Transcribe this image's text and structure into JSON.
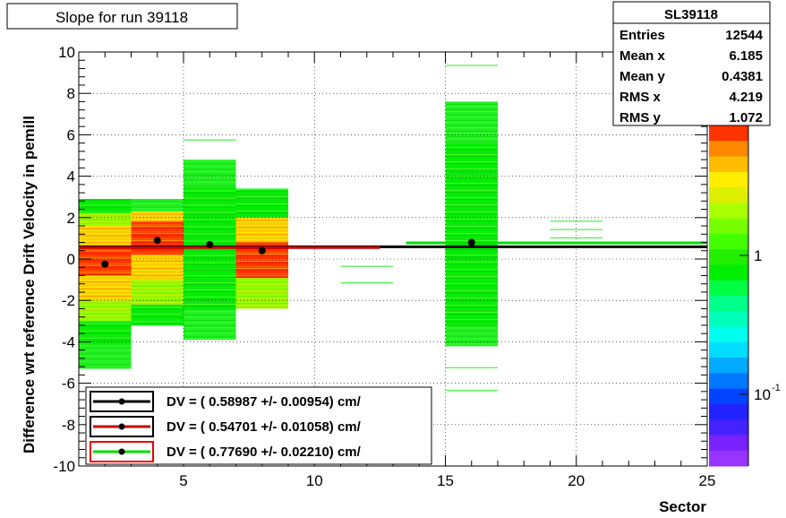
{
  "chart_data": {
    "type": "heatmap",
    "title": "Slope for run 39118",
    "xlabel": "Sector",
    "ylabel": "Difference wrt reference Drift Velocity in pemill",
    "xlim": [
      1,
      25
    ],
    "ylim": [
      -10,
      10
    ],
    "x_ticks": [
      "5",
      "10",
      "15",
      "20",
      "25"
    ],
    "y_ticks": [
      "10",
      "8",
      "6",
      "4",
      "2",
      "0",
      "-2",
      "-4",
      "-6",
      "-8",
      "-10"
    ],
    "z_scale": "log",
    "z_ticks": [
      "1",
      "10"
    ],
    "z_tick_exponents": [
      "",
      "-1"
    ],
    "grid": true,
    "stats": {
      "name": "SL39118",
      "rows": [
        {
          "label": "Entries",
          "value": "12544"
        },
        {
          "label": "Mean x",
          "value": "6.185"
        },
        {
          "label": "Mean y",
          "value": "0.4381"
        },
        {
          "label": "RMS x",
          "value": "4.219"
        },
        {
          "label": "RMS y",
          "value": "1.072"
        }
      ]
    },
    "legend": [
      {
        "text": "DV = (   0.58987 +/-    0.00954) cm/",
        "line_color": "#000000",
        "box_color": "#000000"
      },
      {
        "text": "DV = (   0.54701 +/-    0.01058) cm/",
        "line_color": "#cc0000",
        "box_color": "#000000"
      },
      {
        "text": "DV = (   0.77690 +/-    0.02210) cm/",
        "line_color": "#00dd00",
        "box_color": "#ee0000"
      }
    ],
    "fit_lines": [
      {
        "color": "#000000",
        "x": [
          1,
          25
        ],
        "y": [
          0.59,
          0.59
        ]
      },
      {
        "color": "#cc0000",
        "x": [
          1,
          12.5
        ],
        "y": [
          0.55,
          0.55
        ]
      },
      {
        "color": "#00dd00",
        "x": [
          13.5,
          25
        ],
        "y": [
          0.78,
          0.78
        ]
      }
    ],
    "profile_points": [
      {
        "x": 2,
        "y": -0.25
      },
      {
        "x": 4,
        "y": 0.9
      },
      {
        "x": 6,
        "y": 0.7
      },
      {
        "x": 8,
        "y": 0.4
      },
      {
        "x": 16,
        "y": 0.8
      }
    ],
    "bins": [
      {
        "x0": 1,
        "x1": 3,
        "segments": [
          {
            "y0": -5.3,
            "y1": -4.2,
            "level": "low"
          },
          {
            "y0": -4.2,
            "y1": -3.0,
            "level": "low2"
          },
          {
            "y0": -3.0,
            "y1": -2.0,
            "level": "mid"
          },
          {
            "y0": -2.0,
            "y1": -0.8,
            "level": "midhigh"
          },
          {
            "y0": -0.8,
            "y1": 0.6,
            "level": "high"
          },
          {
            "y0": 0.6,
            "y1": 1.6,
            "level": "midhigh"
          },
          {
            "y0": 1.6,
            "y1": 2.2,
            "level": "mid"
          },
          {
            "y0": 2.2,
            "y1": 2.9,
            "level": "low2"
          }
        ]
      },
      {
        "x0": 3,
        "x1": 5,
        "segments": [
          {
            "y0": -3.2,
            "y1": -2.2,
            "level": "low2"
          },
          {
            "y0": -2.2,
            "y1": -1.0,
            "level": "mid"
          },
          {
            "y0": -1.0,
            "y1": 0.2,
            "level": "midhigh"
          },
          {
            "y0": 0.2,
            "y1": 1.8,
            "level": "high"
          },
          {
            "y0": 1.8,
            "y1": 2.3,
            "level": "midhigh"
          },
          {
            "y0": 2.3,
            "y1": 2.9,
            "level": "low"
          }
        ]
      },
      {
        "x0": 5,
        "x1": 7,
        "segments": [
          {
            "y0": -3.9,
            "y1": -2.5,
            "level": "low"
          },
          {
            "y0": -2.5,
            "y1": -0.5,
            "level": "low2"
          },
          {
            "y0": -0.5,
            "y1": 3.5,
            "level": "low2"
          },
          {
            "y0": 3.5,
            "y1": 4.8,
            "level": "low"
          },
          {
            "y0": 5.7,
            "y1": 5.8,
            "level": "low"
          }
        ]
      },
      {
        "x0": 7,
        "x1": 9,
        "segments": [
          {
            "y0": -2.4,
            "y1": -0.9,
            "level": "mid"
          },
          {
            "y0": -0.9,
            "y1": 0.8,
            "level": "high"
          },
          {
            "y0": 0.8,
            "y1": 2.0,
            "level": "midhigh"
          },
          {
            "y0": 2.0,
            "y1": 3.4,
            "level": "low2"
          }
        ]
      },
      {
        "x0": 11,
        "x1": 13,
        "segments": [
          {
            "y0": -1.2,
            "y1": -1.1,
            "level": "low"
          },
          {
            "y0": -0.4,
            "y1": -0.3,
            "level": "low"
          }
        ]
      },
      {
        "x0": 15,
        "x1": 17,
        "segments": [
          {
            "y0": -6.4,
            "y1": -6.3,
            "level": "low"
          },
          {
            "y0": -5.3,
            "y1": -5.2,
            "level": "low"
          },
          {
            "y0": -4.2,
            "y1": -3.2,
            "level": "low"
          },
          {
            "y0": -3.2,
            "y1": 5.6,
            "level": "low2"
          },
          {
            "y0": 5.6,
            "y1": 7.6,
            "level": "low"
          },
          {
            "y0": 9.3,
            "y1": 9.4,
            "level": "low"
          }
        ]
      },
      {
        "x0": 19,
        "x1": 21,
        "segments": [
          {
            "y0": 1.0,
            "y1": 1.05,
            "level": "low"
          },
          {
            "y0": 1.4,
            "y1": 1.45,
            "level": "low"
          },
          {
            "y0": 1.8,
            "y1": 1.85,
            "level": "low"
          }
        ]
      }
    ]
  }
}
